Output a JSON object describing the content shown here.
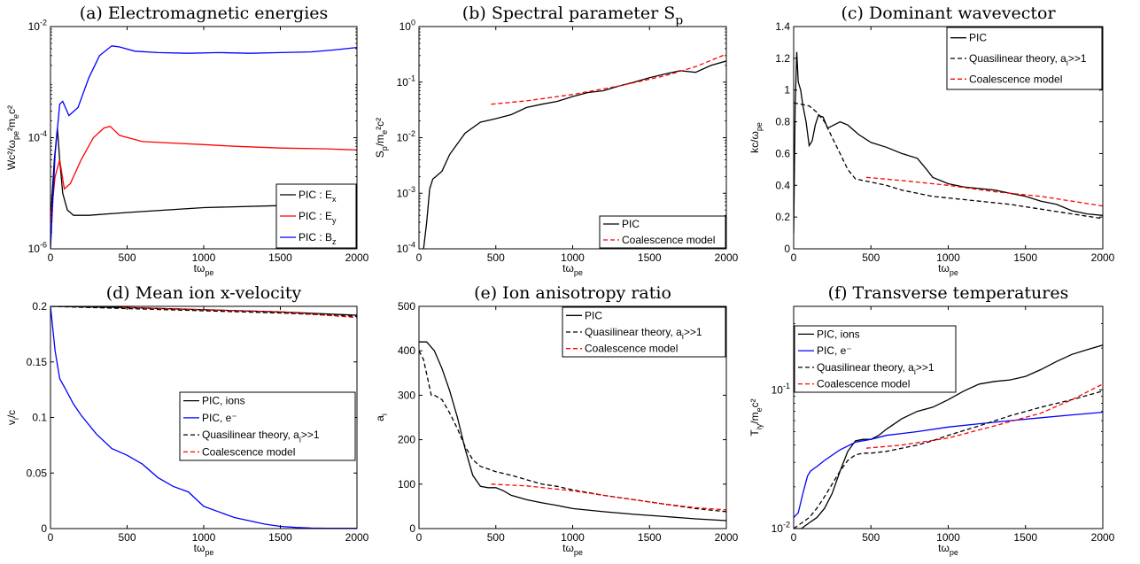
{
  "chart_data": [
    {
      "id": "a",
      "type": "line",
      "title": "(a) Electromagnetic energies",
      "xlabel": "tω_pe",
      "ylabel": "Wc²/ω_pe²m_ec²",
      "xlim": [
        0,
        2000
      ],
      "ylim": [
        1e-06,
        0.01
      ],
      "yscale": "log",
      "xticks": [
        "0",
        "500",
        "1000",
        "1500",
        "2000"
      ],
      "yticks": [
        "10^-6",
        "10^-4",
        "10^-2"
      ],
      "grid": false,
      "legend": "bottom-right",
      "series": [
        {
          "name": "PIC : E_x",
          "color": "#000000",
          "dash": "solid",
          "x": [
            0,
            25,
            45,
            60,
            80,
            110,
            150,
            250,
            500,
            1000,
            1500,
            1800
          ],
          "y": [
            3e-06,
            4e-05,
            0.00015,
            4e-05,
            1e-05,
            5e-06,
            4e-06,
            4e-06,
            4.5e-06,
            5.5e-06,
            6e-06,
            6.5e-06
          ]
        },
        {
          "name": "PIC : E_y",
          "color": "#ff0000",
          "dash": "solid",
          "x": [
            0,
            30,
            60,
            90,
            130,
            200,
            280,
            350,
            390,
            450,
            600,
            800,
            1000,
            1200,
            1500,
            1800,
            2000
          ],
          "y": [
            3e-06,
            2e-05,
            4e-05,
            1.2e-05,
            1.5e-05,
            4e-05,
            0.0001,
            0.00015,
            0.00016,
            0.00011,
            8.5e-05,
            8e-05,
            7.5e-05,
            7e-05,
            6.5e-05,
            6.3e-05,
            6e-05
          ]
        },
        {
          "name": "PIC : B_z",
          "color": "#0000ff",
          "dash": "solid",
          "x": [
            0,
            30,
            60,
            80,
            120,
            180,
            250,
            320,
            400,
            450,
            550,
            700,
            900,
            1100,
            1300,
            1500,
            1700,
            1850,
            2000
          ],
          "y": [
            1e-06,
            5e-05,
            0.0004,
            0.00045,
            0.00025,
            0.00035,
            0.0012,
            0.003,
            0.0045,
            0.0043,
            0.0036,
            0.0034,
            0.0033,
            0.0034,
            0.0033,
            0.0034,
            0.0035,
            0.0038,
            0.0042
          ]
        }
      ]
    },
    {
      "id": "b",
      "type": "line",
      "title": "(b) Spectral parameter S_p",
      "xlabel": "tω_pe",
      "ylabel": "S_p/m_e²c²",
      "xlim": [
        0,
        2000
      ],
      "ylim": [
        0.0001,
        1
      ],
      "yscale": "log",
      "xticks": [
        "0",
        "500",
        "1000",
        "1500",
        "2000"
      ],
      "yticks": [
        "10^-4",
        "10^-3",
        "10^-2",
        "10^-1",
        "10^0"
      ],
      "grid": false,
      "legend": "bottom-right",
      "series": [
        {
          "name": "PIC",
          "color": "#000000",
          "dash": "solid",
          "x": [
            30,
            50,
            70,
            90,
            110,
            150,
            200,
            300,
            400,
            500,
            600,
            700,
            800,
            900,
            1000,
            1100,
            1200,
            1300,
            1400,
            1500,
            1600,
            1700,
            1800,
            1900,
            2000
          ],
          "y": [
            0.0001,
            0.0003,
            0.0012,
            0.0018,
            0.002,
            0.0025,
            0.005,
            0.012,
            0.019,
            0.022,
            0.026,
            0.035,
            0.04,
            0.045,
            0.055,
            0.065,
            0.07,
            0.085,
            0.1,
            0.12,
            0.14,
            0.16,
            0.15,
            0.2,
            0.24
          ]
        },
        {
          "name": "Coalescence model",
          "color": "#ff0000",
          "dash": "dashed",
          "x": [
            470,
            700,
            1000,
            1300,
            1600,
            1800,
            2000
          ],
          "y": [
            0.04,
            0.046,
            0.06,
            0.085,
            0.13,
            0.19,
            0.32
          ]
        }
      ]
    },
    {
      "id": "c",
      "type": "line",
      "title": "(c) Dominant wavevector",
      "xlabel": "tω_pe",
      "ylabel": "kc/ω_pe",
      "xlim": [
        0,
        2000
      ],
      "ylim": [
        0,
        1.4
      ],
      "yscale": "linear",
      "xticks": [
        "0",
        "500",
        "1000",
        "1500",
        "2000"
      ],
      "yticks": [
        "0",
        "0.2",
        "0.4",
        "0.6",
        "0.8",
        "1",
        "1.2",
        "1.4"
      ],
      "grid": false,
      "legend": "top-right",
      "series": [
        {
          "name": "PIC",
          "color": "#000000",
          "dash": "solid",
          "x": [
            0,
            10,
            20,
            30,
            45,
            60,
            80,
            100,
            120,
            140,
            160,
            190,
            220,
            260,
            300,
            350,
            420,
            500,
            600,
            700,
            800,
            860,
            900,
            1000,
            1100,
            1200,
            1300,
            1400,
            1500,
            1600,
            1700,
            1800,
            1900,
            2000
          ],
          "y": [
            0.1,
            0.9,
            1.24,
            1.05,
            1.0,
            0.9,
            0.8,
            0.65,
            0.68,
            0.78,
            0.84,
            0.83,
            0.76,
            0.78,
            0.8,
            0.78,
            0.72,
            0.67,
            0.64,
            0.6,
            0.57,
            0.5,
            0.45,
            0.41,
            0.39,
            0.38,
            0.37,
            0.35,
            0.33,
            0.3,
            0.28,
            0.24,
            0.22,
            0.21
          ]
        },
        {
          "name": "Quasilinear theory, a_i>>1",
          "color": "#000000",
          "dash": "dashed",
          "x": [
            0,
            100,
            150,
            200,
            250,
            300,
            350,
            400,
            450,
            500,
            600,
            700,
            800,
            900,
            1000,
            1200,
            1400,
            1600,
            1800,
            2000
          ],
          "y": [
            0.92,
            0.9,
            0.86,
            0.8,
            0.7,
            0.6,
            0.5,
            0.44,
            0.43,
            0.42,
            0.4,
            0.37,
            0.35,
            0.33,
            0.32,
            0.3,
            0.28,
            0.25,
            0.22,
            0.19
          ]
        },
        {
          "name": "Coalescence model",
          "color": "#ff0000",
          "dash": "dashed",
          "x": [
            470,
            700,
            1000,
            1300,
            1600,
            1800,
            2000
          ],
          "y": [
            0.45,
            0.43,
            0.4,
            0.36,
            0.33,
            0.3,
            0.27
          ]
        }
      ]
    },
    {
      "id": "d",
      "type": "line",
      "title": "(d) Mean ion x-velocity",
      "xlabel": "tω_pe",
      "ylabel": "v_i/c",
      "xlim": [
        0,
        2000
      ],
      "ylim": [
        0,
        0.2
      ],
      "yscale": "linear",
      "xticks": [
        "0",
        "500",
        "1000",
        "1500",
        "2000"
      ],
      "yticks": [
        "0",
        "0.05",
        "0.1",
        "0.15",
        "0.2"
      ],
      "grid": false,
      "legend": "center-right",
      "series": [
        {
          "name": "PIC, ions",
          "color": "#000000",
          "dash": "solid",
          "x": [
            0,
            500,
            1000,
            1500,
            2000
          ],
          "y": [
            0.2,
            0.199,
            0.197,
            0.195,
            0.192
          ]
        },
        {
          "name": "PIC, e⁻",
          "color": "#0000ff",
          "dash": "solid",
          "x": [
            0,
            30,
            60,
            100,
            150,
            200,
            300,
            400,
            500,
            600,
            700,
            800,
            900,
            1000,
            1100,
            1200,
            1300,
            1400,
            1500,
            1600,
            1700,
            1800,
            2000
          ],
          "y": [
            0.2,
            0.16,
            0.135,
            0.125,
            0.112,
            0.102,
            0.085,
            0.072,
            0.066,
            0.058,
            0.046,
            0.038,
            0.033,
            0.02,
            0.015,
            0.01,
            0.007,
            0.004,
            0.002,
            0.001,
            0.0005,
            0.0003,
            0.0002
          ]
        },
        {
          "name": "Quasilinear theory, a_i>>1",
          "color": "#000000",
          "dash": "dashed",
          "x": [
            0,
            500,
            1000,
            1500,
            2000
          ],
          "y": [
            0.2,
            0.198,
            0.196,
            0.194,
            0.191
          ]
        },
        {
          "name": "Coalescence model",
          "color": "#ff0000",
          "dash": "dashed",
          "x": [
            470,
            1000,
            1500,
            2000
          ],
          "y": [
            0.199,
            0.197,
            0.195,
            0.19
          ]
        }
      ]
    },
    {
      "id": "e",
      "type": "line",
      "title": "(e) Ion anisotropy ratio",
      "xlabel": "tω_pe",
      "ylabel": "a_i",
      "xlim": [
        0,
        2000
      ],
      "ylim": [
        0,
        500
      ],
      "yscale": "linear",
      "xticks": [
        "0",
        "500",
        "1000",
        "1500",
        "2000"
      ],
      "yticks": [
        "0",
        "100",
        "200",
        "300",
        "400",
        "500"
      ],
      "grid": false,
      "legend": "top-right",
      "series": [
        {
          "name": "PIC",
          "color": "#000000",
          "dash": "solid",
          "x": [
            0,
            50,
            100,
            150,
            200,
            250,
            300,
            350,
            400,
            450,
            500,
            550,
            600,
            700,
            800,
            900,
            1000,
            1200,
            1400,
            1600,
            1800,
            2000
          ],
          "y": [
            420,
            420,
            400,
            360,
            310,
            250,
            180,
            120,
            95,
            92,
            92,
            85,
            75,
            65,
            58,
            52,
            45,
            38,
            32,
            27,
            22,
            18
          ]
        },
        {
          "name": "Quasilinear theory, a_i>>1",
          "color": "#000000",
          "dash": "dashed",
          "x": [
            0,
            30,
            80,
            100,
            150,
            200,
            250,
            300,
            350,
            400,
            500,
            600,
            700,
            800,
            900,
            1000,
            1200,
            1400,
            1600,
            1800,
            2000
          ],
          "y": [
            400,
            380,
            300,
            300,
            290,
            260,
            225,
            185,
            155,
            140,
            128,
            120,
            110,
            100,
            95,
            87,
            75,
            65,
            55,
            45,
            38
          ]
        },
        {
          "name": "Coalescence model",
          "color": "#ff0000",
          "dash": "dashed",
          "x": [
            470,
            700,
            1000,
            1300,
            1600,
            1800,
            2000
          ],
          "y": [
            100,
            96,
            85,
            70,
            55,
            47,
            42
          ]
        }
      ]
    },
    {
      "id": "f",
      "type": "line",
      "title": "(f) Transverse temperatures",
      "xlabel": "tω_pe",
      "ylabel": "T_iy/m_ec²",
      "xlim": [
        0,
        2000
      ],
      "ylim": [
        0.01,
        0.4
      ],
      "yscale": "log",
      "xticks": [
        "0",
        "500",
        "1000",
        "1500",
        "2000"
      ],
      "yticks": [
        "10^-2",
        "10^-1"
      ],
      "grid": false,
      "legend": "top-left",
      "series": [
        {
          "name": "PIC, ions",
          "color": "#000000",
          "dash": "solid",
          "x": [
            0,
            50,
            100,
            150,
            200,
            250,
            300,
            350,
            400,
            450,
            500,
            550,
            600,
            700,
            800,
            900,
            1000,
            1100,
            1200,
            1300,
            1400,
            1500,
            1600,
            1700,
            1800,
            1900,
            2000
          ],
          "y": [
            0.01,
            0.01,
            0.011,
            0.012,
            0.014,
            0.018,
            0.026,
            0.036,
            0.043,
            0.044,
            0.044,
            0.047,
            0.052,
            0.062,
            0.07,
            0.075,
            0.085,
            0.098,
            0.11,
            0.115,
            0.118,
            0.125,
            0.14,
            0.16,
            0.18,
            0.195,
            0.21
          ]
        },
        {
          "name": "PIC, e⁻",
          "color": "#0000ff",
          "dash": "solid",
          "x": [
            0,
            30,
            60,
            90,
            110,
            150,
            200,
            300,
            400,
            500,
            600,
            800,
            1000,
            1200,
            1400,
            1600,
            1800,
            2000
          ],
          "y": [
            0.012,
            0.013,
            0.018,
            0.024,
            0.026,
            0.028,
            0.031,
            0.037,
            0.042,
            0.044,
            0.047,
            0.05,
            0.054,
            0.057,
            0.06,
            0.063,
            0.066,
            0.069
          ]
        },
        {
          "name": "Quasilinear theory, a_i>>1",
          "color": "#000000",
          "dash": "dashed",
          "x": [
            0,
            100,
            150,
            200,
            250,
            300,
            350,
            400,
            450,
            500,
            600,
            700,
            800,
            900,
            1000,
            1200,
            1400,
            1600,
            1800,
            2000
          ],
          "y": [
            0.01,
            0.012,
            0.014,
            0.017,
            0.021,
            0.026,
            0.031,
            0.034,
            0.035,
            0.035,
            0.036,
            0.038,
            0.04,
            0.043,
            0.047,
            0.055,
            0.065,
            0.075,
            0.085,
            0.098
          ]
        },
        {
          "name": "Coalescence model",
          "color": "#ff0000",
          "dash": "dashed",
          "x": [
            470,
            700,
            1000,
            1300,
            1600,
            1800,
            2000
          ],
          "y": [
            0.038,
            0.04,
            0.045,
            0.055,
            0.068,
            0.085,
            0.11
          ]
        }
      ]
    }
  ]
}
